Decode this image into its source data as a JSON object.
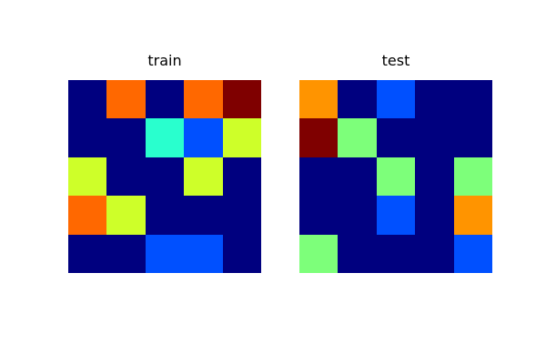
{
  "chart_data": [
    {
      "type": "heatmap",
      "title": "train",
      "colormap": "jet",
      "value_range": [
        0,
        9
      ],
      "grid": false,
      "axes_visible": false,
      "values": [
        [
          0,
          7,
          0,
          7,
          9
        ],
        [
          0,
          0,
          3,
          2,
          5
        ],
        [
          5,
          0,
          0,
          5,
          0
        ],
        [
          7,
          5,
          0,
          0,
          0
        ],
        [
          0,
          0,
          2,
          2,
          0
        ]
      ]
    },
    {
      "type": "heatmap",
      "title": "test",
      "colormap": "jet",
      "value_range": [
        0,
        9
      ],
      "grid": false,
      "axes_visible": false,
      "values": [
        [
          6,
          0,
          2,
          0,
          0
        ],
        [
          9,
          4,
          0,
          0,
          0
        ],
        [
          0,
          0,
          4,
          0,
          4
        ],
        [
          0,
          0,
          2,
          0,
          6
        ],
        [
          4,
          0,
          0,
          0,
          2
        ]
      ]
    }
  ],
  "palette": {
    "0": "#00007f",
    "2": "#0050ff",
    "3": "#29ffce",
    "4": "#7dff7a",
    "5": "#ceff29",
    "6": "#ff9400",
    "7": "#ff6800",
    "9": "#7f0000"
  }
}
